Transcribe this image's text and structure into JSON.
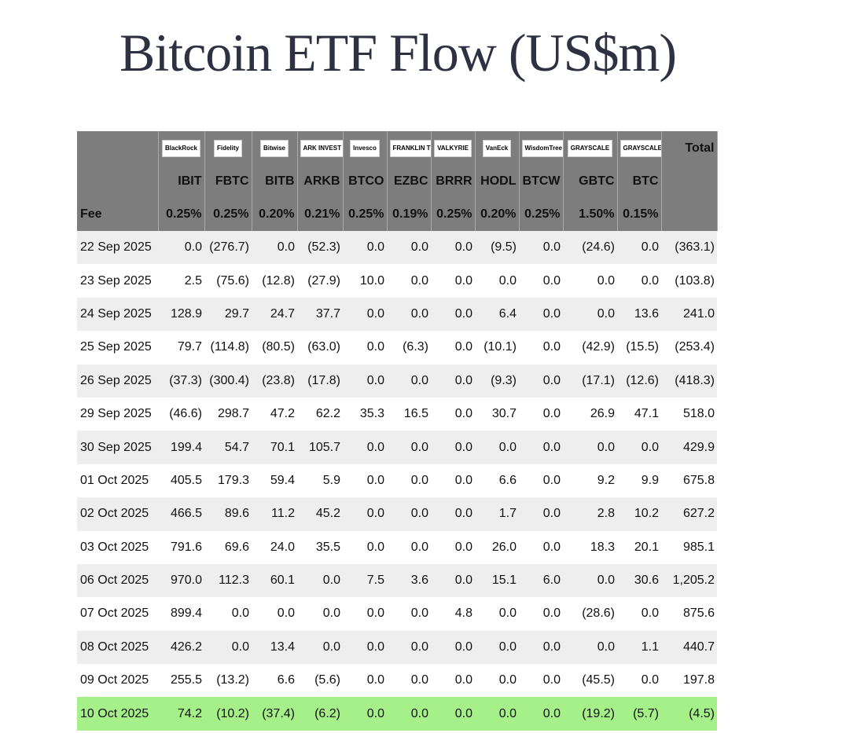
{
  "title": "Bitcoin ETF Flow (US$m)",
  "colors": {
    "header_bg": "#7d7d7d",
    "negative": "#e23b2e",
    "row_shade": "#eeeeee",
    "highlight_row": "#a6f08a"
  },
  "logos": [
    "BlackRock",
    "Fidelity",
    "Bitwise",
    "ARK INVEST",
    "Invesco",
    "FRANKLIN TEMPLETON",
    "VALKYRIE",
    "VanEck",
    "WisdomTree",
    "GRAYSCALE",
    "GRAYSCALE"
  ],
  "total_label": "Total",
  "tickers": [
    "IBIT",
    "FBTC",
    "BITB",
    "ARKB",
    "BTCO",
    "EZBC",
    "BRRR",
    "HODL",
    "BTCW",
    "GBTC",
    "BTC"
  ],
  "fee_label": "Fee",
  "fees": [
    "0.25%",
    "0.25%",
    "0.20%",
    "0.21%",
    "0.25%",
    "0.19%",
    "0.25%",
    "0.20%",
    "0.25%",
    "1.50%",
    "0.15%"
  ],
  "rows": [
    {
      "date": "22 Sep 2025",
      "values": [
        "0.0",
        "(276.7)",
        "0.0",
        "(52.3)",
        "0.0",
        "0.0",
        "0.0",
        "(9.5)",
        "0.0",
        "(24.6)",
        "0.0",
        "(363.1)"
      ]
    },
    {
      "date": "23 Sep 2025",
      "values": [
        "2.5",
        "(75.6)",
        "(12.8)",
        "(27.9)",
        "10.0",
        "0.0",
        "0.0",
        "0.0",
        "0.0",
        "0.0",
        "0.0",
        "(103.8)"
      ]
    },
    {
      "date": "24 Sep 2025",
      "values": [
        "128.9",
        "29.7",
        "24.7",
        "37.7",
        "0.0",
        "0.0",
        "0.0",
        "6.4",
        "0.0",
        "0.0",
        "13.6",
        "241.0"
      ]
    },
    {
      "date": "25 Sep 2025",
      "values": [
        "79.7",
        "(114.8)",
        "(80.5)",
        "(63.0)",
        "0.0",
        "(6.3)",
        "0.0",
        "(10.1)",
        "0.0",
        "(42.9)",
        "(15.5)",
        "(253.4)"
      ]
    },
    {
      "date": "26 Sep 2025",
      "values": [
        "(37.3)",
        "(300.4)",
        "(23.8)",
        "(17.8)",
        "0.0",
        "0.0",
        "0.0",
        "(9.3)",
        "0.0",
        "(17.1)",
        "(12.6)",
        "(418.3)"
      ]
    },
    {
      "date": "29 Sep 2025",
      "values": [
        "(46.6)",
        "298.7",
        "47.2",
        "62.2",
        "35.3",
        "16.5",
        "0.0",
        "30.7",
        "0.0",
        "26.9",
        "47.1",
        "518.0"
      ]
    },
    {
      "date": "30 Sep 2025",
      "values": [
        "199.4",
        "54.7",
        "70.1",
        "105.7",
        "0.0",
        "0.0",
        "0.0",
        "0.0",
        "0.0",
        "0.0",
        "0.0",
        "429.9"
      ]
    },
    {
      "date": "01 Oct 2025",
      "values": [
        "405.5",
        "179.3",
        "59.4",
        "5.9",
        "0.0",
        "0.0",
        "0.0",
        "6.6",
        "0.0",
        "9.2",
        "9.9",
        "675.8"
      ]
    },
    {
      "date": "02 Oct 2025",
      "values": [
        "466.5",
        "89.6",
        "11.2",
        "45.2",
        "0.0",
        "0.0",
        "0.0",
        "1.7",
        "0.0",
        "2.8",
        "10.2",
        "627.2"
      ]
    },
    {
      "date": "03 Oct 2025",
      "values": [
        "791.6",
        "69.6",
        "24.0",
        "35.5",
        "0.0",
        "0.0",
        "0.0",
        "26.0",
        "0.0",
        "18.3",
        "20.1",
        "985.1"
      ]
    },
    {
      "date": "06 Oct 2025",
      "values": [
        "970.0",
        "112.3",
        "60.1",
        "0.0",
        "7.5",
        "3.6",
        "0.0",
        "15.1",
        "6.0",
        "0.0",
        "30.6",
        "1,205.2"
      ]
    },
    {
      "date": "07 Oct 2025",
      "values": [
        "899.4",
        "0.0",
        "0.0",
        "0.0",
        "0.0",
        "0.0",
        "4.8",
        "0.0",
        "0.0",
        "(28.6)",
        "0.0",
        "875.6"
      ]
    },
    {
      "date": "08 Oct 2025",
      "values": [
        "426.2",
        "0.0",
        "13.4",
        "0.0",
        "0.0",
        "0.0",
        "0.0",
        "0.0",
        "0.0",
        "0.0",
        "1.1",
        "440.7"
      ]
    },
    {
      "date": "09 Oct 2025",
      "values": [
        "255.5",
        "(13.2)",
        "6.6",
        "(5.6)",
        "0.0",
        "0.0",
        "0.0",
        "0.0",
        "0.0",
        "(45.5)",
        "0.0",
        "197.8"
      ]
    },
    {
      "date": "10 Oct 2025",
      "values": [
        "74.2",
        "(10.2)",
        "(37.4)",
        "(6.2)",
        "0.0",
        "0.0",
        "0.0",
        "0.0",
        "0.0",
        "(19.2)",
        "(5.7)",
        "(4.5)"
      ]
    }
  ]
}
